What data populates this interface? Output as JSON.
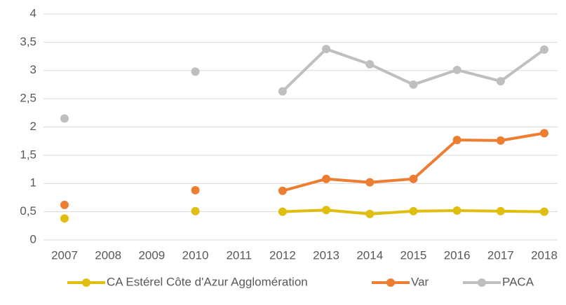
{
  "chart_data": {
    "type": "line",
    "categories": [
      "2007",
      "2008",
      "2009",
      "2010",
      "2011",
      "2012",
      "2013",
      "2014",
      "2015",
      "2016",
      "2017",
      "2018"
    ],
    "series": [
      {
        "name": "CA Estérel Côte d'Azur Agglomération",
        "color": "#dfbe0f",
        "values": [
          0.38,
          null,
          null,
          0.51,
          null,
          0.5,
          0.53,
          0.46,
          0.51,
          0.52,
          0.51,
          0.5
        ]
      },
      {
        "name": "Var",
        "color": "#ed7d31",
        "values": [
          0.62,
          null,
          null,
          0.88,
          null,
          0.87,
          1.08,
          1.02,
          1.08,
          1.77,
          1.76,
          1.89
        ]
      },
      {
        "name": "PACA",
        "color": "#bfbfbf",
        "values": [
          2.15,
          null,
          null,
          2.98,
          null,
          2.63,
          3.38,
          3.11,
          2.75,
          3.01,
          2.81,
          3.37
        ]
      }
    ],
    "ylim": [
      0,
      4
    ],
    "yticks": [
      0,
      {
        "value": 0.5,
        "label": "0,5"
      },
      1,
      {
        "value": 1.5,
        "label": "1,5"
      },
      2,
      {
        "value": 2.5,
        "label": "2,5"
      },
      3,
      {
        "value": 3.5,
        "label": "3,5"
      },
      4
    ],
    "grid": true,
    "legend": "bottom"
  }
}
